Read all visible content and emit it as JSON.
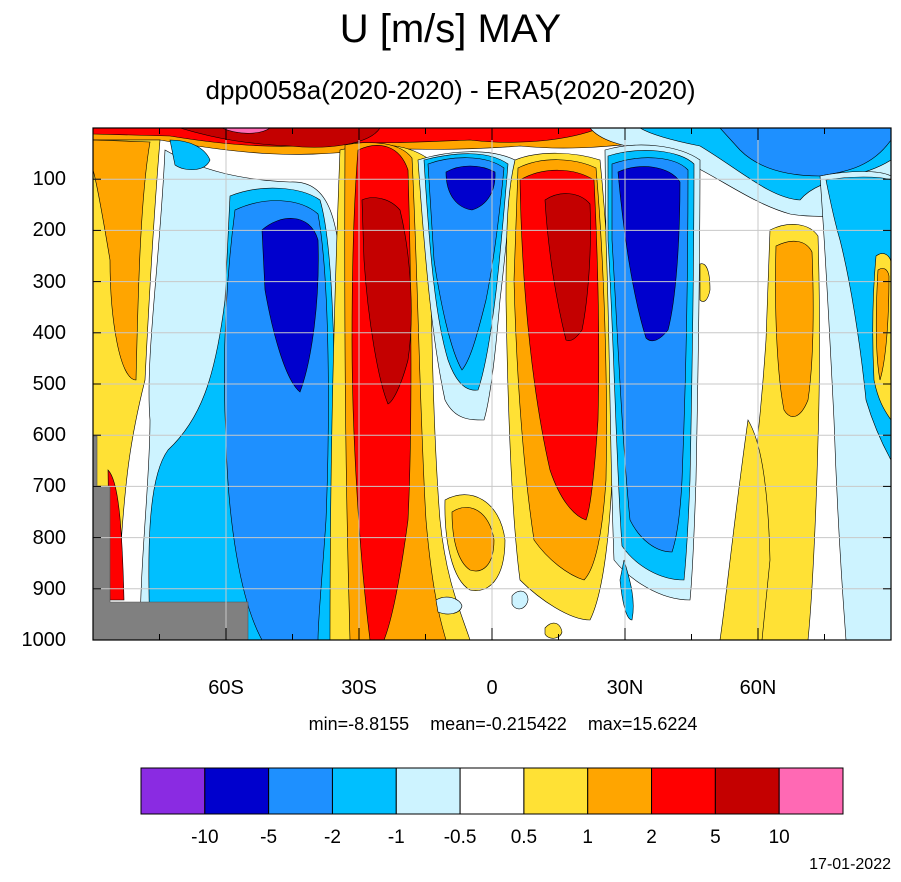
{
  "title": "U [m/s] MAY",
  "subtitle": "dpp0058a(2020-2020) - ERA5(2020-2020)",
  "stats": {
    "min": "min=-8.8155",
    "mean": "mean=-0.215422",
    "max": "max=15.6224"
  },
  "date": "17-01-2022",
  "chart_data": {
    "type": "heatmap",
    "title": "U [m/s] MAY",
    "subtitle": "dpp0058a(2020-2020) - ERA5(2020-2020)",
    "xlabel": "",
    "ylabel": "",
    "x_ticks": [
      "60S",
      "30S",
      "0",
      "30N",
      "60N"
    ],
    "x_tick_values": [
      -60,
      -30,
      0,
      30,
      60
    ],
    "xlim": [
      -90,
      90
    ],
    "y_ticks": [
      "100",
      "200",
      "300",
      "400",
      "500",
      "600",
      "700",
      "800",
      "900",
      "1000"
    ],
    "y_tick_values": [
      100,
      200,
      300,
      400,
      500,
      600,
      700,
      800,
      900,
      1000
    ],
    "ylim": [
      1000,
      0
    ],
    "grid": true,
    "colorbar": {
      "labels": [
        "-10",
        "-5",
        "-2",
        "-1",
        "-0.5",
        "0.5",
        "1",
        "2",
        "5",
        "10"
      ],
      "colors": [
        "#8a2be2",
        "#0000cd",
        "#1e90ff",
        "#00bfff",
        "#cdf3ff",
        "#ffffff",
        "#ffe135",
        "#ffa500",
        "#ff0000",
        "#c40000",
        "#ff69b4"
      ]
    },
    "features": [
      {
        "name": "wind_band_60S",
        "lat": [
          -60,
          -37
        ],
        "p": [
          80,
          1000
        ],
        "value": -5,
        "core_value": -8
      },
      {
        "name": "wind_band_30S",
        "lat": [
          -33,
          -18
        ],
        "p": [
          10,
          870
        ],
        "value": 6,
        "core_value": 12
      },
      {
        "name": "wind_band_eq",
        "lat": [
          -16,
          5
        ],
        "p": [
          60,
          560
        ],
        "value": -3,
        "core_value": -6
      },
      {
        "name": "wind_band_20N",
        "lat": [
          8,
          27
        ],
        "p": [
          70,
          800
        ],
        "value": 4,
        "core_value": 7
      },
      {
        "name": "wind_band_35N",
        "lat": [
          28,
          45
        ],
        "p": [
          60,
          880
        ],
        "value": -4,
        "core_value": -7
      },
      {
        "name": "wind_band_65N",
        "lat": [
          61,
          71
        ],
        "p": [
          230,
          620
        ],
        "value": 1.5,
        "core_value": 2.5
      },
      {
        "name": "wind_band_80N",
        "lat": [
          75,
          88
        ],
        "p": [
          0,
          700
        ],
        "value": -2
      },
      {
        "name": "wind_band_85S",
        "lat": [
          -90,
          -77
        ],
        "p": [
          10,
          620
        ],
        "value": 1.5
      },
      {
        "name": "wind_band_strat_35N",
        "lat": [
          0,
          90
        ],
        "p": [
          0,
          60
        ],
        "value": -2
      }
    ],
    "stats": {
      "min": -8.8155,
      "mean": -0.215422,
      "max": 15.6224
    }
  }
}
